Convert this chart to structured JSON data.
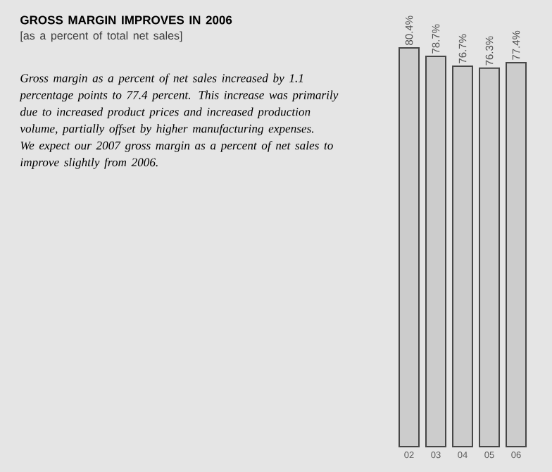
{
  "chart_data": {
    "type": "bar",
    "title": "GROSS MARGIN IMPROVES IN 2006",
    "subtitle": "[as a percent of total net sales]",
    "annotations": [
      "Gross margin as a percent of net sales increased by 1.1 percentage points to 77.4 percent. This increase was primarily due to increased product prices and increased production volume, partially offset by higher manufacturing expenses. We expect our 2007 gross margin as a percent of net sales to improve slightly from 2006."
    ],
    "categories": [
      "02",
      "03",
      "04",
      "05",
      "06"
    ],
    "values": [
      80.4,
      78.7,
      76.7,
      76.3,
      77.4
    ],
    "value_labels": [
      "80.4%",
      "78.7%",
      "76.7%",
      "76.3%",
      "77.4%"
    ],
    "color": "#cccccc"
  }
}
